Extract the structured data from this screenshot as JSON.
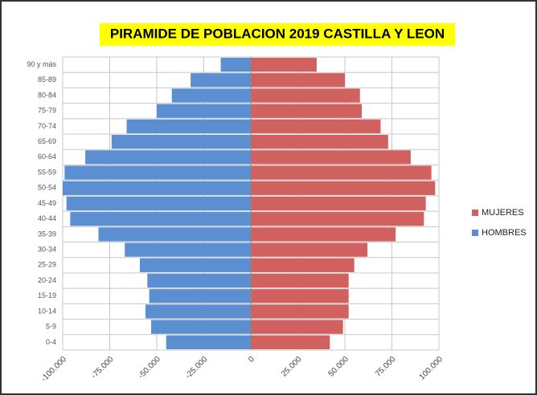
{
  "chart_data": {
    "type": "pyramid",
    "title": "PIRAMIDE DE POBLACION 2019 CASTILLA Y LEON",
    "categories": [
      "0-4",
      "5-9",
      "10-14",
      "15-19",
      "20-24",
      "25-29",
      "30-34",
      "35-39",
      "40-44",
      "45-49",
      "50-54",
      "55-59",
      "60-64",
      "65-69",
      "70-74",
      "75-79",
      "80-84",
      "85-89",
      "90 y más"
    ],
    "series": [
      {
        "name": "MUJERES",
        "color": "#d0615e",
        "values": [
          42000,
          49000,
          52000,
          52000,
          52000,
          55000,
          62000,
          77000,
          92000,
          93000,
          98000,
          96000,
          85000,
          73000,
          69000,
          59000,
          58000,
          50000,
          35000
        ]
      },
      {
        "name": "HOMBRES",
        "color": "#5b8fd2",
        "values": [
          -45000,
          -53000,
          -56000,
          -54000,
          -55000,
          -59000,
          -67000,
          -81000,
          -96000,
          -98000,
          -100000,
          -99000,
          -88000,
          -74000,
          -66000,
          -50000,
          -42000,
          -32000,
          -16000
        ]
      }
    ],
    "xlim": [
      -100000,
      100000
    ],
    "xticks": [
      {
        "value": -100000,
        "label": "-100.000"
      },
      {
        "value": -75000,
        "label": "-75.000"
      },
      {
        "value": -50000,
        "label": "-50.000"
      },
      {
        "value": -25000,
        "label": "-25.000"
      },
      0,
      {
        "value": 25000,
        "label": "25.000"
      },
      {
        "value": 50000,
        "label": "50.000"
      },
      {
        "value": 75000,
        "label": "75.000"
      },
      {
        "value": 100000,
        "label": "100.000"
      }
    ],
    "grid": true,
    "legend": "right"
  }
}
